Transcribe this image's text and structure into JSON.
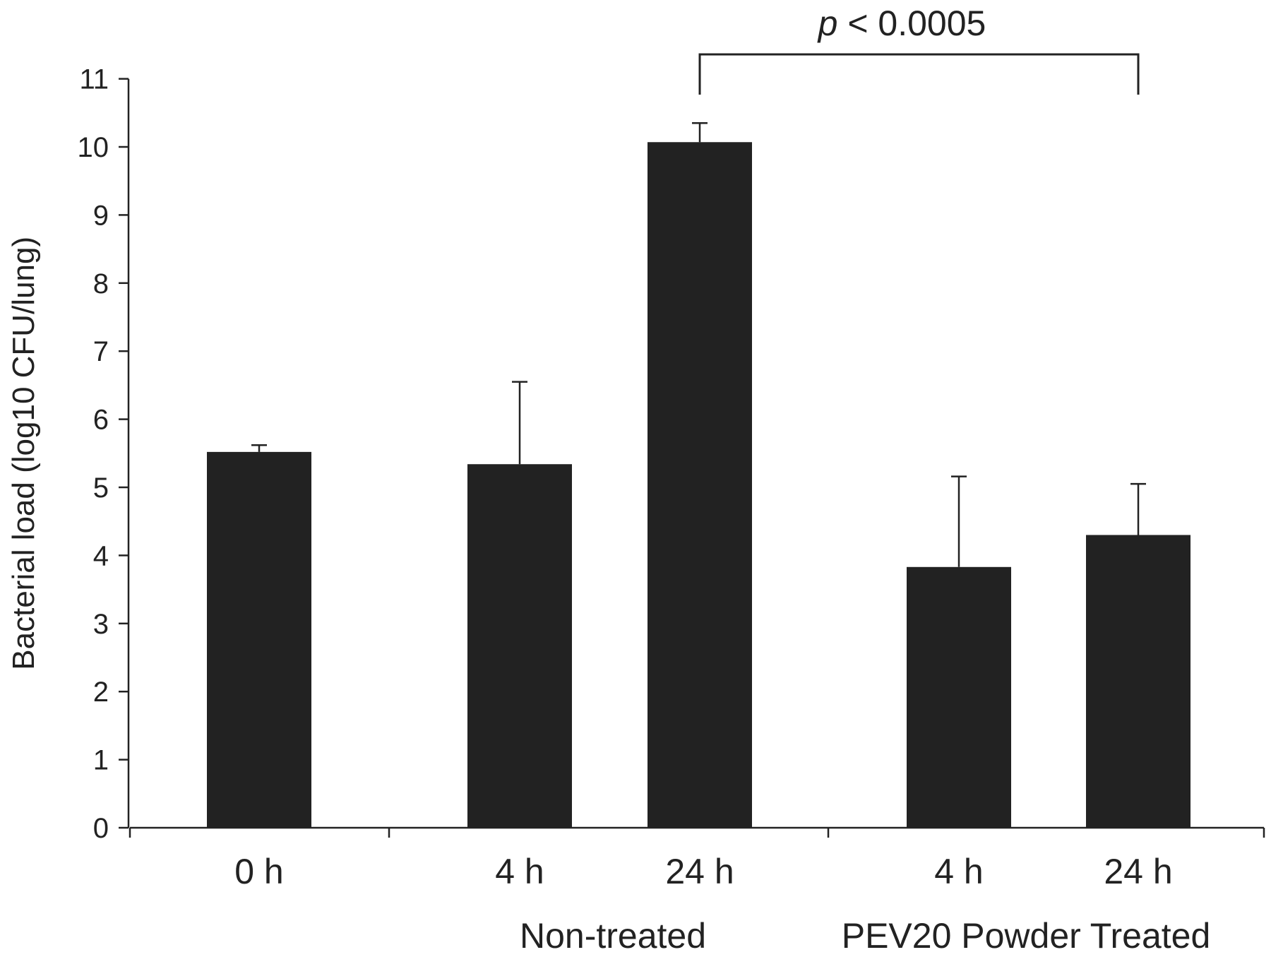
{
  "chart_data": {
    "type": "bar",
    "title": "",
    "xlabel": "",
    "ylabel": "Bacterial load (log10 CFU/lung)",
    "ylim": [
      0,
      11
    ],
    "yticks": [
      0,
      1,
      2,
      3,
      4,
      5,
      6,
      7,
      8,
      9,
      10,
      11
    ],
    "grid": false,
    "categories": [
      "0 h",
      "4 h",
      "24 h",
      "4 h",
      "24 h"
    ],
    "values": [
      5.52,
      5.34,
      10.07,
      3.83,
      4.3
    ],
    "errors": [
      0.1,
      1.21,
      0.28,
      1.33,
      0.75
    ],
    "color": "#222222",
    "groups": [
      {
        "label": "Non-treated",
        "categories": [
          1,
          2
        ]
      },
      {
        "label": "PEV20 Powder Treated",
        "categories": [
          3,
          4
        ]
      }
    ],
    "annotation": {
      "between": [
        2,
        4
      ],
      "p_symbol": "p",
      "text": " < 0.0005"
    }
  }
}
